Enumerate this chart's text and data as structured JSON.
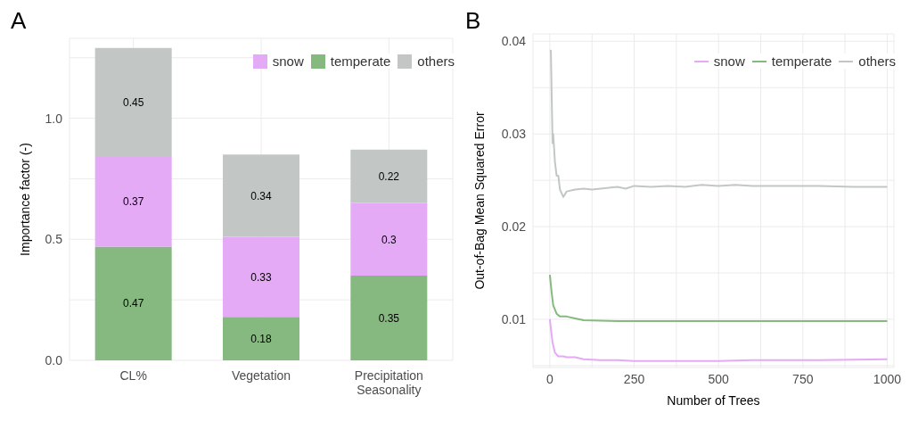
{
  "chart_data": [
    {
      "type": "bar",
      "title": "A",
      "ylabel": "Importance factor (-)",
      "categories": [
        "CL%",
        "Vegetation",
        "Precipitation\nSeasonality"
      ],
      "stacked": true,
      "data_labels": true,
      "legend": "top right",
      "grid": true,
      "series": [
        {
          "name": "temperate",
          "color": "#86b97f",
          "values": [
            0.47,
            0.18,
            0.35
          ]
        },
        {
          "name": "snow",
          "color": "#e5aaf5",
          "values": [
            0.37,
            0.33,
            0.3
          ]
        },
        {
          "name": "others",
          "color": "#c2c7c6",
          "values": [
            0.45,
            0.34,
            0.22
          ]
        }
      ],
      "ylim": [
        0,
        1.33
      ],
      "yticks": [
        {
          "value": 0,
          "label": "0.0"
        },
        {
          "value": 0.25,
          "label": null
        },
        {
          "value": 0.5,
          "label": "0.5"
        },
        {
          "value": 0.75,
          "label": null
        },
        {
          "value": 1,
          "label": "1.0"
        },
        {
          "value": 1.25,
          "label": null
        }
      ]
    },
    {
      "type": "line",
      "title": "B",
      "xlabel": "Number of Trees",
      "ylabel": "Out-of-Bag Mean Squared Error",
      "legend": "top right",
      "grid": true,
      "series": [
        {
          "name": "snow",
          "color": "#e5aaf5",
          "x": [
            0,
            3,
            8,
            15,
            25,
            40,
            50,
            75,
            100,
            150,
            200,
            250,
            300,
            400,
            500,
            600,
            800,
            1000
          ],
          "values": [
            0.01,
            0.009,
            0.0075,
            0.0064,
            0.006,
            0.006,
            0.0059,
            0.0059,
            0.0057,
            0.0056,
            0.0056,
            0.0055,
            0.0055,
            0.0055,
            0.0055,
            0.0056,
            0.0056,
            0.0057
          ]
        },
        {
          "name": "temperate",
          "color": "#86b97f",
          "x": [
            0,
            5,
            10,
            20,
            30,
            50,
            75,
            100,
            200,
            300,
            500,
            1000
          ],
          "values": [
            0.0148,
            0.013,
            0.0115,
            0.0106,
            0.0103,
            0.0103,
            0.0101,
            0.0099,
            0.0098,
            0.0098,
            0.0098,
            0.0098
          ]
        },
        {
          "name": "others",
          "color": "#c2c7c6",
          "x": [
            0,
            3,
            8,
            10,
            15,
            20,
            25,
            30,
            40,
            50,
            75,
            100,
            125,
            150,
            200,
            225,
            250,
            300,
            350,
            400,
            450,
            500,
            550,
            600,
            700,
            800,
            900,
            1000
          ],
          "values": [
            0.039,
            0.039,
            0.029,
            0.03,
            0.027,
            0.0255,
            0.0255,
            0.024,
            0.0232,
            0.0238,
            0.024,
            0.0241,
            0.024,
            0.0241,
            0.0243,
            0.0241,
            0.0244,
            0.0243,
            0.0244,
            0.0243,
            0.0245,
            0.0244,
            0.0245,
            0.0244,
            0.0244,
            0.0244,
            0.0243,
            0.0243
          ]
        }
      ],
      "xlim": [
        -50,
        1020
      ],
      "xticks": [
        0,
        {
          "value": 125,
          "label": null
        },
        250,
        {
          "value": 375,
          "label": null
        },
        500,
        {
          "value": 625,
          "label": null
        },
        750,
        {
          "value": 875,
          "label": null
        },
        1000
      ],
      "ylim": [
        0.0048,
        0.0408
      ],
      "yticks": [
        {
          "value": 0.005,
          "label": null
        },
        0.01,
        {
          "value": 0.015,
          "label": null
        },
        0.02,
        {
          "value": 0.025,
          "label": null
        },
        0.03,
        {
          "value": 0.035,
          "label": null
        },
        0.04
      ]
    }
  ]
}
